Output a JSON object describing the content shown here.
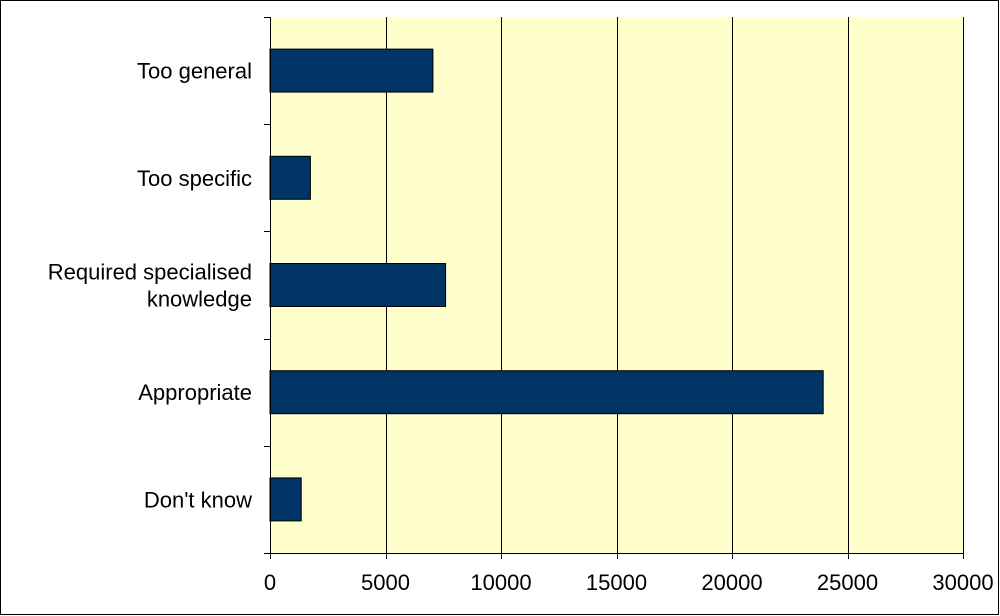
{
  "chart_data": {
    "type": "bar",
    "orientation": "horizontal",
    "categories": [
      "Too general",
      "Too specific",
      "Required specialised knowledge",
      "Appropriate",
      "Don't know"
    ],
    "category_lines": [
      [
        "Too general"
      ],
      [
        "Too specific"
      ],
      [
        "Required specialised",
        "knowledge"
      ],
      [
        "Appropriate"
      ],
      [
        "Don't know"
      ]
    ],
    "values": [
      7050,
      1750,
      7600,
      23950,
      1350
    ],
    "xlim": [
      0,
      30000
    ],
    "ticks": [
      0,
      5000,
      10000,
      15000,
      20000,
      25000,
      30000
    ],
    "tick_labels": [
      "0",
      "5000",
      "10000",
      "15000",
      "20000",
      "25000",
      "30000"
    ],
    "xlabel": "",
    "ylabel": "",
    "title": "",
    "grid": "vertical",
    "legend": "none"
  },
  "colors": {
    "bar": "#003366",
    "plot_background": "#ffffcc",
    "grid": "#000000",
    "frame": "#000000",
    "text": "#000000"
  }
}
